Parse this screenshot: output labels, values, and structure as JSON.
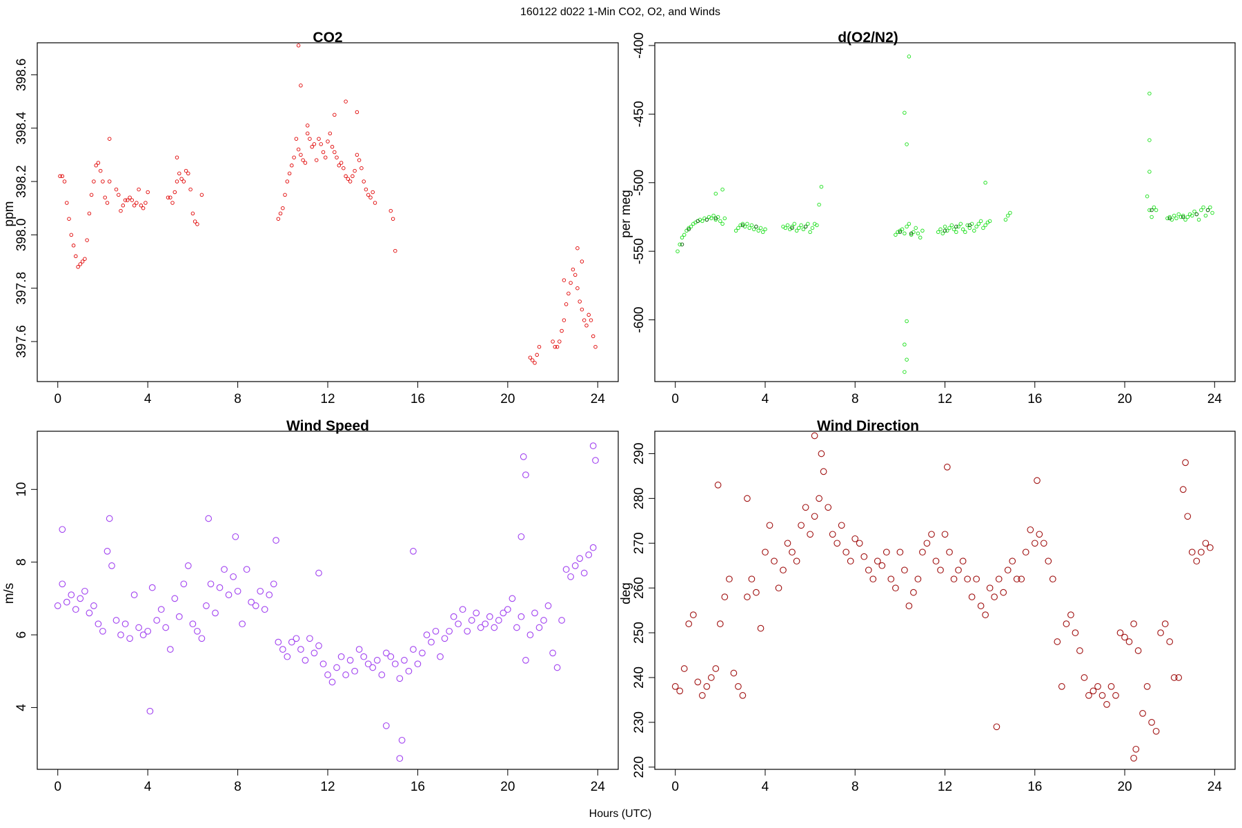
{
  "figure": {
    "suptitle": "160122   d022   1-Min CO2, O2, and Winds",
    "xlabel": "Hours (UTC)"
  },
  "chart_data": [
    {
      "type": "scatter",
      "title": "CO2",
      "xlabel": "",
      "ylabel": "ppm",
      "xlim": [
        0,
        24
      ],
      "ylim": [
        397.45,
        398.72
      ],
      "xticks": [
        0,
        4,
        8,
        12,
        16,
        20,
        24
      ],
      "yticks": [
        397.6,
        397.8,
        398.0,
        398.2,
        398.4,
        398.6
      ],
      "ytick_labels": [
        "397.6",
        "397.8",
        "398.0",
        "398.2",
        "398.4",
        "398.6"
      ],
      "grid": false,
      "marker": "open-circle-small",
      "color": "#e00000",
      "x": [
        0.1,
        0.2,
        0.3,
        0.4,
        0.5,
        0.6,
        0.7,
        0.8,
        0.9,
        1.0,
        1.1,
        1.2,
        1.3,
        1.4,
        1.5,
        1.6,
        1.7,
        1.8,
        1.9,
        2.0,
        2.1,
        2.2,
        2.3,
        2.6,
        2.7,
        2.8,
        2.9,
        3.0,
        3.1,
        3.2,
        3.3,
        3.4,
        3.5,
        3.6,
        3.7,
        3.8,
        3.9,
        4.0,
        4.9,
        5.0,
        5.1,
        5.2,
        5.3,
        5.4,
        5.5,
        5.6,
        5.7,
        5.8,
        5.9,
        6.0,
        6.1,
        6.2,
        6.4,
        9.8,
        9.9,
        10.0,
        10.1,
        10.2,
        10.3,
        10.4,
        10.5,
        10.6,
        10.7,
        10.8,
        10.9,
        11.0,
        11.1,
        11.2,
        11.3,
        11.4,
        11.5,
        11.6,
        11.7,
        11.8,
        11.9,
        12.0,
        12.1,
        12.2,
        12.3,
        12.4,
        12.5,
        12.6,
        12.7,
        12.8,
        12.9,
        13.0,
        13.1,
        13.2,
        13.3,
        13.4,
        13.5,
        13.6,
        13.7,
        13.8,
        13.9,
        14.0,
        14.1,
        14.8,
        14.9,
        15.0,
        21.0,
        21.1,
        21.2,
        21.3,
        21.4,
        22.0,
        22.1,
        22.2,
        22.3,
        22.4,
        22.5,
        22.6,
        22.7,
        22.8,
        22.9,
        23.0,
        23.1,
        23.2,
        23.3,
        23.4,
        23.5,
        23.6,
        23.7,
        23.8,
        23.9
      ],
      "y": [
        398.22,
        398.22,
        398.2,
        398.12,
        398.06,
        398.0,
        397.96,
        397.92,
        397.88,
        397.89,
        397.9,
        397.91,
        397.98,
        398.08,
        398.15,
        398.2,
        398.26,
        398.27,
        398.24,
        398.2,
        398.14,
        398.12,
        398.2,
        398.17,
        398.15,
        398.09,
        398.11,
        398.13,
        398.13,
        398.14,
        398.13,
        398.11,
        398.12,
        398.17,
        398.11,
        398.1,
        398.12,
        398.16,
        398.14,
        398.14,
        398.12,
        398.16,
        398.2,
        398.23,
        398.21,
        398.2,
        398.24,
        398.23,
        398.17,
        398.08,
        398.05,
        398.04,
        398.15,
        398.06,
        398.08,
        398.1,
        398.15,
        398.2,
        398.23,
        398.26,
        398.29,
        398.36,
        398.32,
        398.3,
        398.28,
        398.27,
        398.38,
        398.36,
        398.33,
        398.34,
        398.28,
        398.36,
        398.34,
        398.31,
        398.29,
        398.35,
        398.38,
        398.33,
        398.31,
        398.29,
        398.26,
        398.27,
        398.25,
        398.22,
        398.21,
        398.2,
        398.22,
        398.24,
        398.3,
        398.28,
        398.25,
        398.2,
        398.17,
        398.15,
        398.14,
        398.16,
        398.12,
        398.09,
        398.06,
        397.94,
        397.54,
        397.53,
        397.52,
        397.55,
        397.58,
        397.6,
        397.58,
        397.58,
        397.6,
        397.64,
        397.68,
        397.74,
        397.78,
        397.82,
        397.87,
        397.85,
        397.8,
        397.75,
        397.72,
        397.68,
        397.66,
        397.7,
        397.68,
        397.62,
        397.58
      ],
      "outliers_x": [
        10.7,
        10.8,
        11.1,
        12.3,
        12.8,
        13.3,
        2.3,
        5.3,
        23.1,
        23.3,
        22.5
      ],
      "outliers_y": [
        398.71,
        398.56,
        398.41,
        398.45,
        398.5,
        398.46,
        398.36,
        398.29,
        397.95,
        397.9,
        397.83
      ]
    },
    {
      "type": "scatter",
      "title": "d(O2/N2)",
      "xlabel": "",
      "ylabel": "per meg",
      "xlim": [
        0,
        24
      ],
      "ylim": [
        -645,
        -398
      ],
      "xticks": [
        0,
        4,
        8,
        12,
        16,
        20,
        24
      ],
      "yticks": [
        -600,
        -550,
        -500,
        -450,
        -400
      ],
      "ytick_labels": [
        "-600",
        "-550",
        "-500",
        "-450",
        "-400"
      ],
      "grid": false,
      "marker": "open-circle-small",
      "color": "#18e018",
      "x": [
        0.1,
        0.2,
        0.3,
        0.4,
        0.5,
        0.6,
        0.7,
        0.8,
        0.9,
        1.0,
        1.1,
        1.2,
        1.3,
        1.4,
        1.5,
        1.6,
        1.7,
        1.8,
        1.9,
        2.0,
        2.1,
        2.2,
        2.7,
        2.8,
        2.9,
        3.0,
        3.1,
        3.2,
        3.3,
        3.4,
        3.5,
        3.6,
        3.7,
        3.8,
        3.9,
        4.0,
        4.8,
        4.9,
        5.0,
        5.1,
        5.2,
        5.3,
        5.4,
        5.5,
        5.6,
        5.7,
        5.8,
        5.9,
        6.0,
        6.1,
        6.2,
        6.3,
        6.4,
        9.8,
        9.9,
        10.0,
        10.1,
        10.2,
        10.3,
        10.4,
        10.5,
        10.6,
        10.7,
        10.8,
        10.9,
        11.0,
        11.7,
        11.8,
        11.9,
        12.0,
        12.1,
        12.2,
        12.3,
        12.4,
        12.5,
        12.6,
        12.7,
        12.8,
        12.9,
        13.0,
        13.1,
        13.2,
        13.3,
        13.4,
        13.5,
        13.6,
        13.7,
        13.8,
        13.9,
        14.0,
        14.7,
        14.8,
        14.9,
        21.0,
        21.1,
        21.2,
        21.3,
        21.4,
        21.9,
        22.0,
        22.1,
        22.2,
        22.3,
        22.4,
        22.5,
        22.6,
        22.7,
        22.8,
        22.9,
        23.0,
        23.1,
        23.2,
        23.3,
        23.4,
        23.5,
        23.6,
        23.7,
        23.8,
        23.9
      ],
      "y": [
        -550,
        -545,
        -540,
        -538,
        -535,
        -533,
        -532,
        -530,
        -529,
        -528,
        -527,
        -528,
        -526,
        -527,
        -525,
        -526,
        -524,
        -527,
        -525,
        -528,
        -530,
        -526,
        -535,
        -533,
        -531,
        -530,
        -532,
        -530,
        -533,
        -531,
        -534,
        -532,
        -535,
        -533,
        -536,
        -534,
        -532,
        -533,
        -531,
        -534,
        -532,
        -530,
        -535,
        -533,
        -531,
        -534,
        -532,
        -530,
        -536,
        -533,
        -530,
        -531,
        -516,
        -538,
        -536,
        -535,
        -534,
        -537,
        -532,
        -530,
        -538,
        -536,
        -533,
        -537,
        -540,
        -535,
        -536,
        -534,
        -537,
        -532,
        -535,
        -533,
        -531,
        -534,
        -536,
        -532,
        -530,
        -534,
        -536,
        -531,
        -533,
        -530,
        -535,
        -532,
        -530,
        -528,
        -533,
        -531,
        -529,
        -528,
        -527,
        -524,
        -522,
        -510,
        -520,
        -525,
        -518,
        -520,
        -526,
        -525,
        -527,
        -524,
        -526,
        -523,
        -525,
        -524,
        -527,
        -525,
        -523,
        -524,
        -521,
        -523,
        -527,
        -520,
        -518,
        -524,
        -520,
        -518,
        -522
      ],
      "outliers_x": [
        10.4,
        10.2,
        10.3,
        10.2,
        10.3,
        10.2,
        10.3,
        21.1,
        21.1,
        21.1,
        2.1,
        6.5,
        13.8,
        1.8
      ],
      "outliers_y": [
        -408,
        -618,
        -629,
        -638,
        -601,
        -449,
        -472,
        -435,
        -469,
        -492,
        -505,
        -503,
        -500,
        -508
      ],
      "dark_marks_x": [
        0.3,
        0.6,
        1.0,
        1.4,
        1.8,
        3.0,
        3.6,
        5.2,
        5.8,
        10.0,
        10.5,
        12.0,
        12.5,
        13.1,
        21.2,
        22.0,
        22.6,
        23.2,
        23.7
      ],
      "dark_marks_y": [
        -545,
        -534,
        -528,
        -527,
        -526,
        -531,
        -532,
        -533,
        -532,
        -536,
        -537,
        -535,
        -532,
        -531,
        -520,
        -526,
        -525,
        -523,
        -520
      ]
    },
    {
      "type": "scatter",
      "title": "Wind Speed",
      "xlabel": "",
      "ylabel": "m/s",
      "xlim": [
        0,
        24
      ],
      "ylim": [
        2.3,
        11.6
      ],
      "xticks": [
        0,
        4,
        8,
        12,
        16,
        20,
        24
      ],
      "yticks": [
        4,
        6,
        8,
        10
      ],
      "ytick_labels": [
        "4",
        "6",
        "8",
        "10"
      ],
      "grid": false,
      "marker": "open-circle",
      "color": "#a040f0",
      "x": [
        0.0,
        0.2,
        0.4,
        0.6,
        0.8,
        1.0,
        1.2,
        1.4,
        1.6,
        1.8,
        2.0,
        2.2,
        2.4,
        2.6,
        2.8,
        3.0,
        3.2,
        3.4,
        3.6,
        3.8,
        4.0,
        4.2,
        4.4,
        4.6,
        4.8,
        5.0,
        5.2,
        5.4,
        5.6,
        5.8,
        6.0,
        6.2,
        6.4,
        6.6,
        6.8,
        7.0,
        7.2,
        7.4,
        7.6,
        7.8,
        8.0,
        8.2,
        8.4,
        8.6,
        8.8,
        9.0,
        9.2,
        9.4,
        9.6,
        9.8,
        10.0,
        10.2,
        10.4,
        10.6,
        10.8,
        11.0,
        11.2,
        11.4,
        11.6,
        11.8,
        12.0,
        12.2,
        12.4,
        12.6,
        12.8,
        13.0,
        13.2,
        13.4,
        13.6,
        13.8,
        14.0,
        14.2,
        14.4,
        14.6,
        14.8,
        15.0,
        15.2,
        15.4,
        15.6,
        15.8,
        16.0,
        16.2,
        16.4,
        16.6,
        16.8,
        17.0,
        17.2,
        17.4,
        17.6,
        17.8,
        18.0,
        18.2,
        18.4,
        18.6,
        18.8,
        19.0,
        19.2,
        19.4,
        19.6,
        19.8,
        20.0,
        20.2,
        20.4,
        20.6,
        20.8,
        21.0,
        21.2,
        21.4,
        21.6,
        21.8,
        22.0,
        22.2,
        22.4,
        22.6,
        22.8,
        23.0,
        23.2,
        23.4,
        23.6,
        23.8
      ],
      "y": [
        6.8,
        7.4,
        6.9,
        7.1,
        6.7,
        7.0,
        7.2,
        6.6,
        6.8,
        6.3,
        6.1,
        8.3,
        7.9,
        6.4,
        6.0,
        6.3,
        5.9,
        7.1,
        6.2,
        6.0,
        6.1,
        7.3,
        6.4,
        6.7,
        6.2,
        5.6,
        7.0,
        6.5,
        7.4,
        7.9,
        6.3,
        6.1,
        5.9,
        6.8,
        7.4,
        6.6,
        7.3,
        7.8,
        7.1,
        7.6,
        7.2,
        6.3,
        7.8,
        6.9,
        6.8,
        7.2,
        6.7,
        7.1,
        7.4,
        5.8,
        5.6,
        5.4,
        5.8,
        5.9,
        5.6,
        5.3,
        5.9,
        5.5,
        5.7,
        5.2,
        4.9,
        4.7,
        5.1,
        5.4,
        4.9,
        5.3,
        5.0,
        5.6,
        5.4,
        5.2,
        5.1,
        5.3,
        4.9,
        5.5,
        5.4,
        5.2,
        4.8,
        5.3,
        5.0,
        5.6,
        5.2,
        5.5,
        6.0,
        5.8,
        6.1,
        5.4,
        5.9,
        6.1,
        6.5,
        6.3,
        6.7,
        6.1,
        6.4,
        6.6,
        6.2,
        6.3,
        6.5,
        6.2,
        6.4,
        6.6,
        6.7,
        7.0,
        6.2,
        6.5,
        5.3,
        6.0,
        6.6,
        6.2,
        6.4,
        6.8,
        5.5,
        5.1,
        6.4,
        7.8,
        7.6,
        7.9,
        8.1,
        7.7,
        8.2,
        8.4
      ],
      "outliers_x": [
        15.2,
        15.3,
        14.6,
        4.1,
        20.7,
        20.8,
        23.8,
        23.9,
        0.2,
        2.3,
        6.7,
        7.9,
        9.7,
        15.8,
        20.6,
        11.6
      ],
      "outliers_y": [
        2.6,
        3.1,
        3.5,
        3.9,
        10.9,
        10.4,
        11.2,
        10.8,
        8.9,
        9.2,
        9.2,
        8.7,
        8.6,
        8.3,
        8.7,
        7.7
      ]
    },
    {
      "type": "scatter",
      "title": "Wind Direction",
      "xlabel": "",
      "ylabel": "deg",
      "xlim": [
        0,
        24
      ],
      "ylim": [
        219.5,
        295
      ],
      "xticks": [
        0,
        4,
        8,
        12,
        16,
        20,
        24
      ],
      "yticks": [
        220,
        230,
        240,
        250,
        260,
        270,
        280,
        290
      ],
      "ytick_labels": [
        "220",
        "230",
        "240",
        "250",
        "260",
        "270",
        "280",
        "290"
      ],
      "grid": false,
      "marker": "open-circle",
      "color": "#a01010",
      "x": [
        0.0,
        0.2,
        0.4,
        0.6,
        0.8,
        1.0,
        1.2,
        1.4,
        1.6,
        1.8,
        2.0,
        2.2,
        2.4,
        2.6,
        2.8,
        3.0,
        3.2,
        3.4,
        3.6,
        3.8,
        4.0,
        4.2,
        4.4,
        4.6,
        4.8,
        5.0,
        5.2,
        5.4,
        5.6,
        5.8,
        6.0,
        6.2,
        6.4,
        6.6,
        6.8,
        7.0,
        7.2,
        7.4,
        7.6,
        7.8,
        8.0,
        8.2,
        8.4,
        8.6,
        8.8,
        9.0,
        9.2,
        9.4,
        9.6,
        9.8,
        10.0,
        10.2,
        10.4,
        10.6,
        10.8,
        11.0,
        11.2,
        11.4,
        11.6,
        11.8,
        12.0,
        12.2,
        12.4,
        12.6,
        12.8,
        13.0,
        13.2,
        13.4,
        13.6,
        13.8,
        14.0,
        14.2,
        14.4,
        14.6,
        14.8,
        15.0,
        15.2,
        15.4,
        15.6,
        15.8,
        16.0,
        16.2,
        16.4,
        16.6,
        16.8,
        17.0,
        17.2,
        17.4,
        17.6,
        17.8,
        18.0,
        18.2,
        18.4,
        18.6,
        18.8,
        19.0,
        19.2,
        19.4,
        19.6,
        19.8,
        20.0,
        20.2,
        20.4,
        20.6,
        20.8,
        21.0,
        21.2,
        21.4,
        21.6,
        21.8,
        22.0,
        22.2,
        22.4,
        22.6,
        22.8,
        23.0,
        23.2,
        23.4,
        23.6,
        23.8
      ],
      "y": [
        238,
        237,
        242,
        252,
        254,
        239,
        236,
        238,
        240,
        242,
        252,
        258,
        262,
        241,
        238,
        236,
        258,
        262,
        259,
        251,
        268,
        274,
        266,
        260,
        264,
        270,
        268,
        266,
        274,
        278,
        272,
        276,
        280,
        286,
        278,
        272,
        270,
        274,
        268,
        266,
        271,
        270,
        267,
        264,
        262,
        266,
        265,
        268,
        262,
        260,
        268,
        264,
        256,
        259,
        262,
        268,
        270,
        272,
        266,
        264,
        272,
        268,
        262,
        264,
        266,
        262,
        258,
        262,
        256,
        254,
        260,
        258,
        262,
        259,
        264,
        266,
        262,
        262,
        268,
        273,
        270,
        272,
        270,
        266,
        262,
        248,
        238,
        252,
        254,
        250,
        246,
        240,
        236,
        237,
        238,
        236,
        234,
        238,
        236,
        250,
        249,
        248,
        252,
        246,
        232,
        238,
        230,
        228,
        250,
        252,
        248,
        240,
        240,
        282,
        276,
        268,
        266,
        268,
        270,
        269
      ],
      "outliers_x": [
        6.2,
        6.5,
        20.4,
        20.5,
        14.3,
        1.9,
        3.2,
        16.1,
        12.1,
        22.7
      ],
      "outliers_y": [
        294,
        290,
        222,
        224,
        229,
        283,
        280,
        284,
        287,
        288
      ]
    }
  ]
}
